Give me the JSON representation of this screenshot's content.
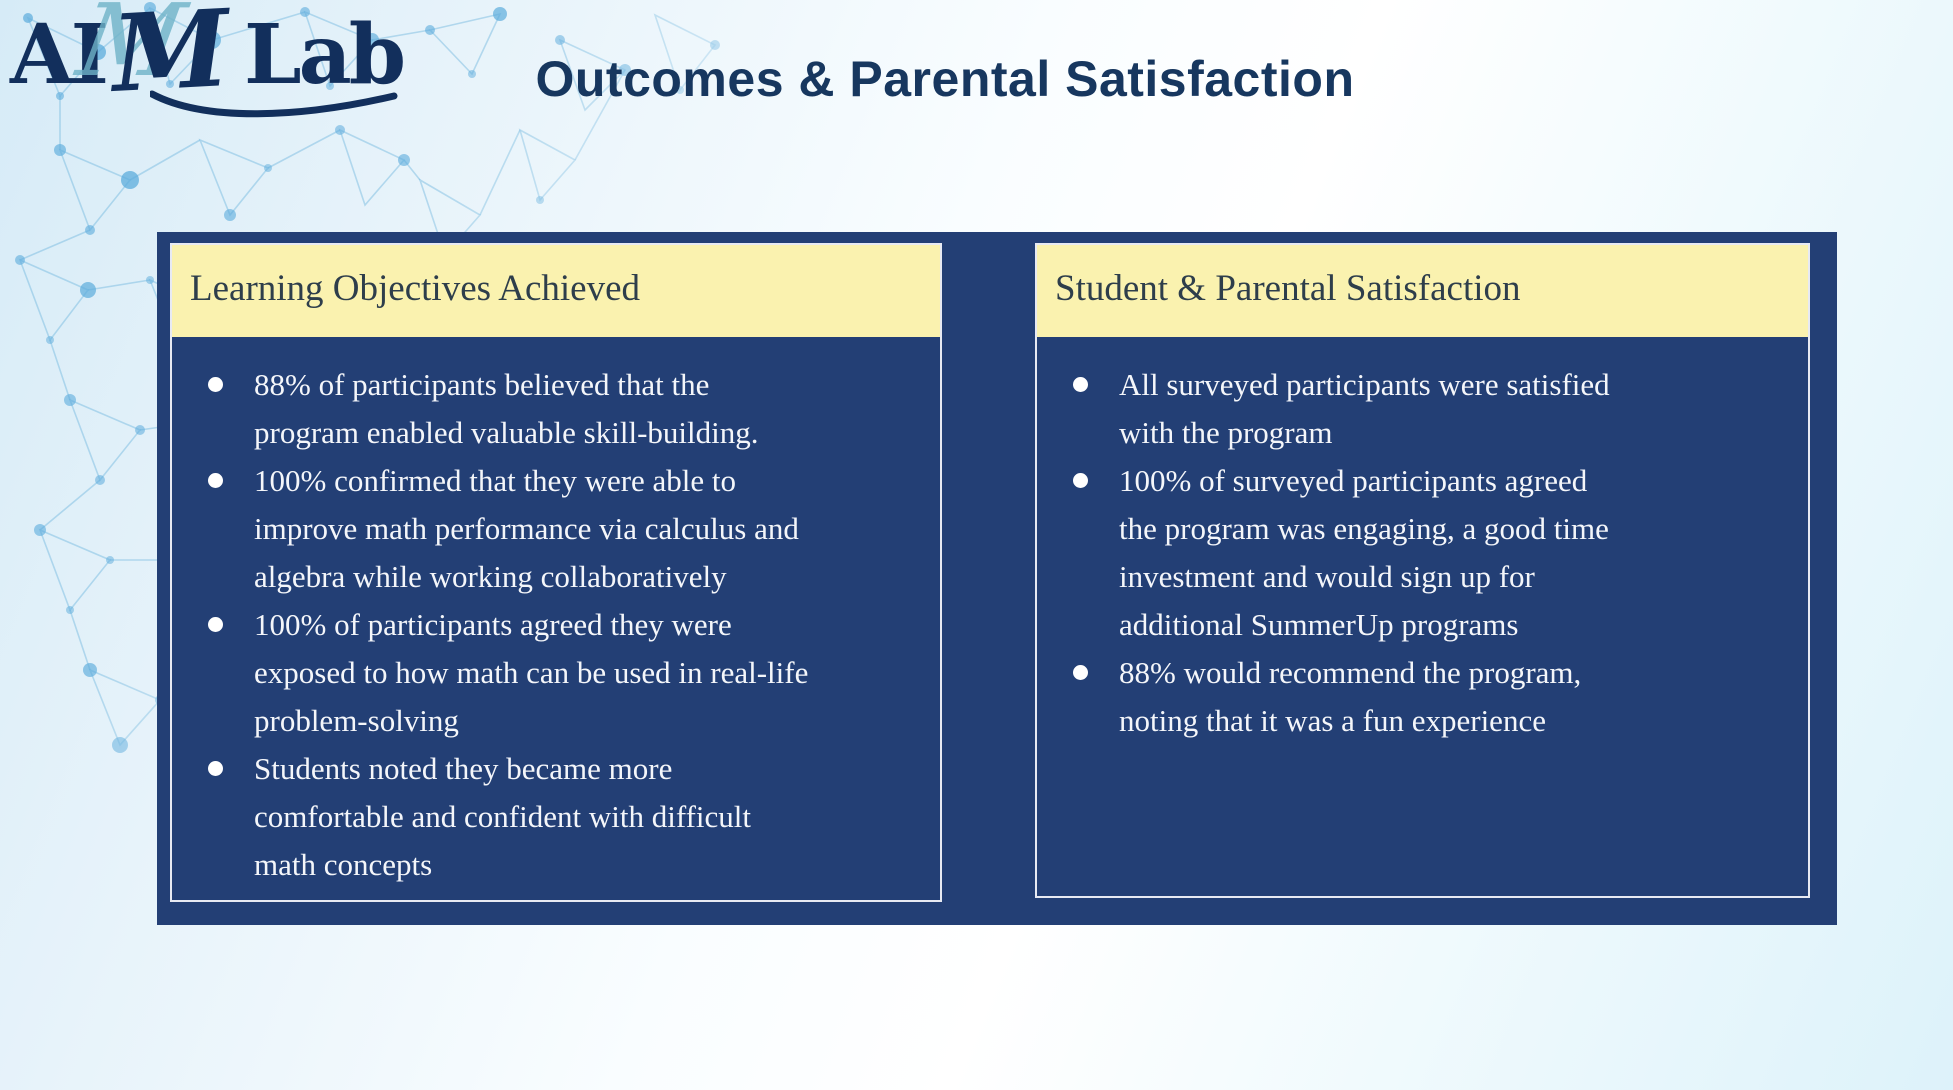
{
  "logo": {
    "prefix": "AI",
    "monogram": "M",
    "suffix": "Lab"
  },
  "title": "Outcomes & Parental Satisfaction",
  "panels": [
    {
      "header": "Learning Objectives Achieved",
      "bullets": [
        [
          "88% of participants believed that the",
          "program enabled valuable skill-building."
        ],
        [
          "100% confirmed that they were able to",
          "improve math performance via calculus and",
          "algebra while working collaboratively"
        ],
        [
          "100% of participants agreed they were",
          "exposed to how math can be used in real-life",
          "problem-solving"
        ],
        [
          "Students noted they became more",
          "comfortable and confident with difficult",
          "math concepts"
        ]
      ]
    },
    {
      "header": "Student & Parental Satisfaction",
      "bullets": [
        [
          "All surveyed participants were satisfied",
          "with the program"
        ],
        [
          "100% of surveyed participants agreed",
          "the program was engaging, a good time",
          "investment and would sign up for",
          "additional SummerUp programs"
        ],
        [
          "88% would recommend the program,",
          "noting that it was a fun experience"
        ]
      ]
    }
  ],
  "colors": {
    "panel_navy": "#233F75",
    "header_yellow": "#FAF2AF",
    "header_text": "#2E3E4B",
    "body_text": "#F4F6FA",
    "title_navy": "#17375F",
    "logo_navy": "#122F5C",
    "logo_teal": "#6FB3C8",
    "network_blue": "#5CACDC",
    "card_border": "#E7EAF3"
  }
}
